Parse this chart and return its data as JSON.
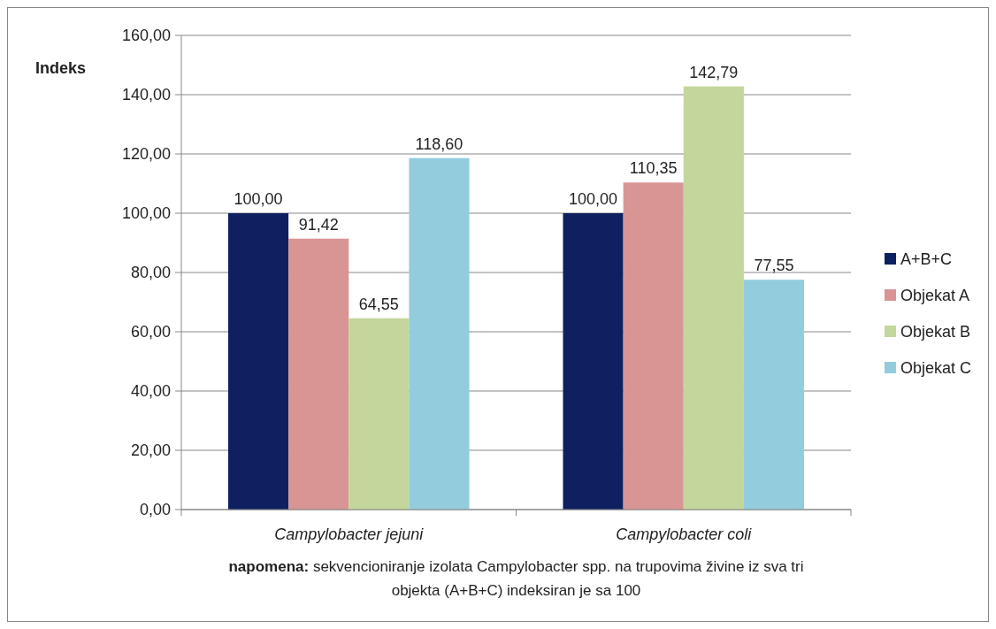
{
  "chart_data": {
    "type": "bar",
    "ylabel": "Indeks",
    "categories": [
      "Campylobacter jejuni",
      "Campylobacter coli"
    ],
    "series": [
      {
        "name": "A+B+C",
        "color": "#0e2060",
        "values": [
          100.0,
          100.0
        ],
        "value_labels": [
          "100,00",
          "100,00"
        ]
      },
      {
        "name": "Objekat A",
        "color": "#d99594",
        "values": [
          91.42,
          110.35
        ],
        "value_labels": [
          "91,42",
          "110,35"
        ]
      },
      {
        "name": "Objekat B",
        "color": "#c3d69b",
        "values": [
          64.55,
          142.79
        ],
        "value_labels": [
          "64,55",
          "142,79"
        ]
      },
      {
        "name": "Objekat C",
        "color": "#93cddd",
        "values": [
          118.6,
          77.55
        ],
        "value_labels": [
          "118,60",
          "77,55"
        ]
      }
    ],
    "ylim": [
      0,
      160
    ],
    "yticks": [
      {
        "value": 0,
        "label": "0,00"
      },
      {
        "value": 20,
        "label": "20,00"
      },
      {
        "value": 40,
        "label": "40,00"
      },
      {
        "value": 60,
        "label": "60,00"
      },
      {
        "value": 80,
        "label": "80,00"
      },
      {
        "value": 100,
        "label": "100,00"
      },
      {
        "value": 120,
        "label": "120,00"
      },
      {
        "value": 140,
        "label": "140,00"
      },
      {
        "value": 160,
        "label": "160,00"
      }
    ],
    "grid": "y",
    "legend": "right",
    "annotations": [
      "napomena: sekvencioniranje izolata Campylobacter spp. na trupovima živine iz sva tri objekta (A+B+C)  indeksiran je sa 100"
    ]
  }
}
